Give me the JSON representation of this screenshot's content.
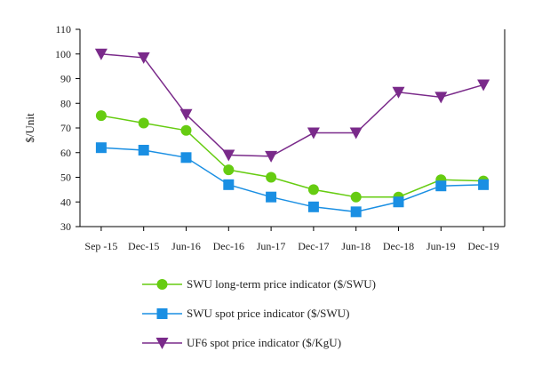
{
  "chart_data": {
    "type": "line",
    "title": "",
    "xlabel": "",
    "ylabel": "$/Unit",
    "ylim": [
      30,
      110
    ],
    "yticks": [
      30,
      40,
      50,
      60,
      70,
      80,
      90,
      100,
      110
    ],
    "grid": false,
    "legend_position": "bottom",
    "categories": [
      "Sep -15",
      "Dec-15",
      "Jun-16",
      "Dec-16",
      "Jun-17",
      "Dec-17",
      "Jun-18",
      "Dec-18",
      "Jun-19",
      "Dec-19"
    ],
    "series": [
      {
        "name": "SWU long-term price indicator ($/SWU)",
        "color": "#66cc11",
        "marker": "circle",
        "values": [
          75,
          72,
          69,
          53,
          50,
          45,
          42,
          42,
          49,
          48.5
        ]
      },
      {
        "name": "SWU spot price indicator ($/SWU)",
        "color": "#1a8fe3",
        "marker": "square",
        "values": [
          62,
          61,
          58,
          47,
          42,
          38,
          36,
          40,
          46.5,
          47
        ]
      },
      {
        "name": "UF6 spot price indicator ($/KgU)",
        "color": "#7a2a8a",
        "marker": "triangle-down",
        "values": [
          100,
          98.5,
          75.5,
          59,
          58.5,
          68,
          68,
          84.5,
          82.5,
          87.5
        ]
      }
    ]
  }
}
